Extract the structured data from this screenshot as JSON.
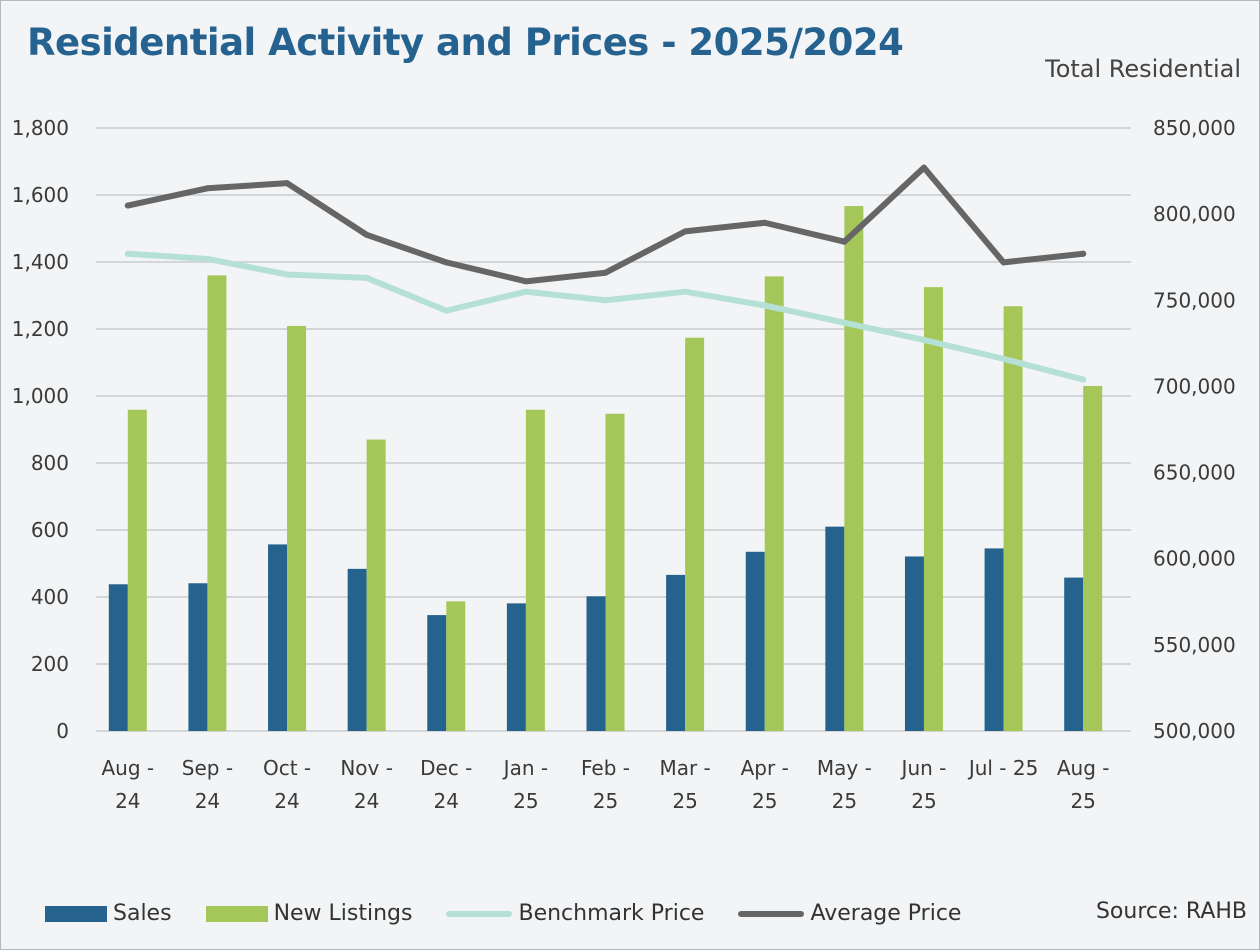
{
  "title": "Residential Activity and Prices - 2025/2024",
  "subtitle": "Total Residential",
  "source": "Source: RAHB",
  "colors": {
    "sales": "#25628e",
    "new_listings": "#a5c75a",
    "benchmark": "#b5e0d5",
    "average": "#666666",
    "grid": "#d3d6d9"
  },
  "chart_data": {
    "type": "bar",
    "categories": [
      "Aug - 24",
      "Sep - 24",
      "Oct - 24",
      "Nov - 24",
      "Dec - 24",
      "Jan - 25",
      "Feb - 25",
      "Mar - 25",
      "Apr - 25",
      "May - 25",
      "Jun - 25",
      "Jul - 25",
      "Aug - 25"
    ],
    "category_labels": [
      [
        "Aug -",
        "24"
      ],
      [
        "Sep -",
        "24"
      ],
      [
        "Oct -",
        "24"
      ],
      [
        "Nov -",
        "24"
      ],
      [
        "Dec -",
        "24"
      ],
      [
        "Jan -",
        "25"
      ],
      [
        "Feb -",
        "25"
      ],
      [
        "Mar -",
        "25"
      ],
      [
        "Apr -",
        "25"
      ],
      [
        "May -",
        "25"
      ],
      [
        "Jun -",
        "25"
      ],
      [
        "Jul - 25"
      ],
      [
        "Aug -",
        "25"
      ]
    ],
    "series": [
      {
        "name": "Sales",
        "type": "bar",
        "axis": "left",
        "values": [
          438,
          441,
          557,
          484,
          346,
          381,
          402,
          466,
          535,
          610,
          521,
          545,
          458
        ]
      },
      {
        "name": "New Listings",
        "type": "bar",
        "axis": "left",
        "values": [
          959,
          1360,
          1209,
          870,
          387,
          959,
          947,
          1174,
          1357,
          1567,
          1325,
          1268,
          1030
        ]
      },
      {
        "name": "Benchmark Price",
        "type": "line",
        "axis": "right",
        "values": [
          777000,
          774000,
          765000,
          763000,
          744000,
          755000,
          750000,
          755000,
          747000,
          737000,
          727000,
          716000,
          704000
        ]
      },
      {
        "name": "Average Price",
        "type": "line",
        "axis": "right",
        "values": [
          805000,
          815000,
          818000,
          788000,
          772000,
          761000,
          766000,
          790000,
          795000,
          784000,
          827000,
          772000,
          777000
        ]
      }
    ],
    "ylim_left": [
      0,
      1800
    ],
    "yticks_left": [
      0,
      200,
      400,
      600,
      800,
      1000,
      1200,
      1400,
      1600,
      1800
    ],
    "yticks_left_labels": [
      "0",
      "200",
      "400",
      "600",
      "800",
      "1,000",
      "1,200",
      "1,400",
      "1,600",
      "1,800"
    ],
    "ylim_right": [
      500000,
      850000
    ],
    "yticks_right": [
      500000,
      550000,
      600000,
      650000,
      700000,
      750000,
      800000,
      850000
    ],
    "yticks_right_labels": [
      "500,000",
      "550,000",
      "600,000",
      "650,000",
      "700,000",
      "750,000",
      "800,000",
      "850,000"
    ],
    "grid": true,
    "legend_position": "bottom"
  },
  "legend": [
    {
      "label": "Sales",
      "kind": "box",
      "color": "#25628e"
    },
    {
      "label": "New Listings",
      "kind": "box",
      "color": "#a5c75a"
    },
    {
      "label": "Benchmark Price",
      "kind": "line",
      "color": "#b5e0d5"
    },
    {
      "label": "Average Price",
      "kind": "line",
      "color": "#666666"
    }
  ]
}
